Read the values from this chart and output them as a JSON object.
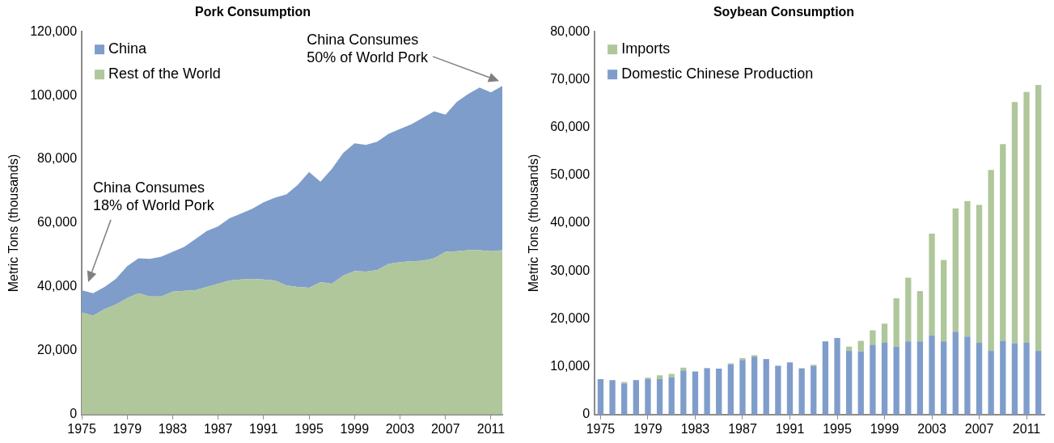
{
  "chart_data": [
    {
      "type": "area",
      "title": "Pork Consumption",
      "ylabel": "Metric Tons (thousands)",
      "stacked": true,
      "legend": "top left",
      "x": [
        1975,
        1976,
        1977,
        1978,
        1979,
        1980,
        1981,
        1982,
        1983,
        1984,
        1985,
        1986,
        1987,
        1988,
        1989,
        1990,
        1991,
        1992,
        1993,
        1994,
        1995,
        1996,
        1997,
        1998,
        1999,
        2000,
        2001,
        2002,
        2003,
        2004,
        2005,
        2006,
        2007,
        2008,
        2009,
        2010,
        2011,
        2012
      ],
      "xlim": [
        1975,
        2012
      ],
      "xticks": [
        1975,
        1979,
        1983,
        1987,
        1991,
        1995,
        1999,
        2003,
        2007,
        2011
      ],
      "ylim": [
        0,
        120000
      ],
      "yticks": [
        0,
        {
          "value": 20000,
          "label": "20,000"
        },
        {
          "value": 40000,
          "label": "40,000"
        },
        {
          "value": 60000,
          "label": "60,000"
        },
        {
          "value": 80000,
          "label": "80,000"
        },
        {
          "value": 100000,
          "label": "100,000"
        },
        {
          "value": 120000,
          "label": "120,000"
        }
      ],
      "series": [
        {
          "name": "Rest of the World",
          "color": "#afc79b",
          "values": [
            32000,
            31000,
            33000,
            34500,
            36500,
            38000,
            37000,
            37000,
            38500,
            38800,
            39000,
            40000,
            41000,
            42000,
            42300,
            42500,
            42300,
            42000,
            40500,
            40000,
            39700,
            41500,
            41000,
            43500,
            45000,
            44800,
            45300,
            47200,
            47800,
            48000,
            48200,
            49000,
            51000,
            51200,
            51500,
            51500,
            51200,
            51500
          ]
        },
        {
          "name": "China",
          "color": "#7f9dcb",
          "values": [
            7000,
            7000,
            7000,
            8000,
            10000,
            11000,
            11800,
            12500,
            12500,
            13700,
            16000,
            17500,
            18000,
            19500,
            20700,
            22000,
            24200,
            26000,
            28500,
            32000,
            36300,
            31500,
            36000,
            38500,
            40000,
            39700,
            40200,
            40800,
            41700,
            43000,
            44800,
            46000,
            43000,
            46800,
            49000,
            51000,
            49800,
            51500
          ]
        }
      ],
      "annotations": [
        "China Consumes 18% of World Pork",
        "China Consumes 50% of World Pork"
      ]
    },
    {
      "type": "bar",
      "title": "Soybean Consumption",
      "ylabel": "Metric Tons (thousands)",
      "stacked": true,
      "legend": "top left",
      "categories": [
        "1975",
        null,
        null,
        null,
        "1979",
        null,
        null,
        null,
        "1983",
        null,
        null,
        null,
        "1987",
        null,
        null,
        null,
        "1991",
        null,
        null,
        null,
        "1995",
        null,
        null,
        null,
        "1999",
        null,
        null,
        null,
        "2003",
        null,
        null,
        null,
        "2007",
        null,
        null,
        null,
        "2011",
        null
      ],
      "ylim": [
        0,
        80000
      ],
      "yticks": [
        0,
        {
          "value": 10000,
          "label": "10,000"
        },
        {
          "value": 20000,
          "label": "20,000"
        },
        {
          "value": 30000,
          "label": "30,000"
        },
        {
          "value": 40000,
          "label": "40,000"
        },
        {
          "value": 50000,
          "label": "50,000"
        },
        {
          "value": 60000,
          "label": "60,000"
        },
        {
          "value": 70000,
          "label": "70,000"
        },
        {
          "value": 80000,
          "label": "80,000"
        }
      ],
      "series": [
        {
          "name": "Domestic Chinese Production",
          "color": "#7f9dcb",
          "values": [
            7400,
            7200,
            6500,
            7200,
            7400,
            7400,
            7800,
            9200,
            9000,
            9700,
            9600,
            10500,
            11400,
            12100,
            11600,
            10200,
            10900,
            9600,
            10200,
            15300,
            16000,
            13300,
            13200,
            14600,
            15000,
            14200,
            15300,
            15300,
            16500,
            15300,
            17300,
            16300,
            15000,
            13300,
            15400,
            14900,
            15000,
            13300
          ]
        },
        {
          "name": "Imports",
          "color": "#afc79b",
          "values": [
            0,
            0,
            300,
            null,
            300,
            800,
            700,
            600,
            0,
            0,
            0,
            200,
            400,
            300,
            0,
            0,
            0,
            100,
            200,
            0,
            0,
            900,
            2200,
            3000,
            4000,
            10100,
            13300,
            10500,
            21300,
            17000,
            25800,
            28300,
            28800,
            37800,
            41100,
            50400,
            52400,
            55600
          ]
        }
      ]
    }
  ]
}
